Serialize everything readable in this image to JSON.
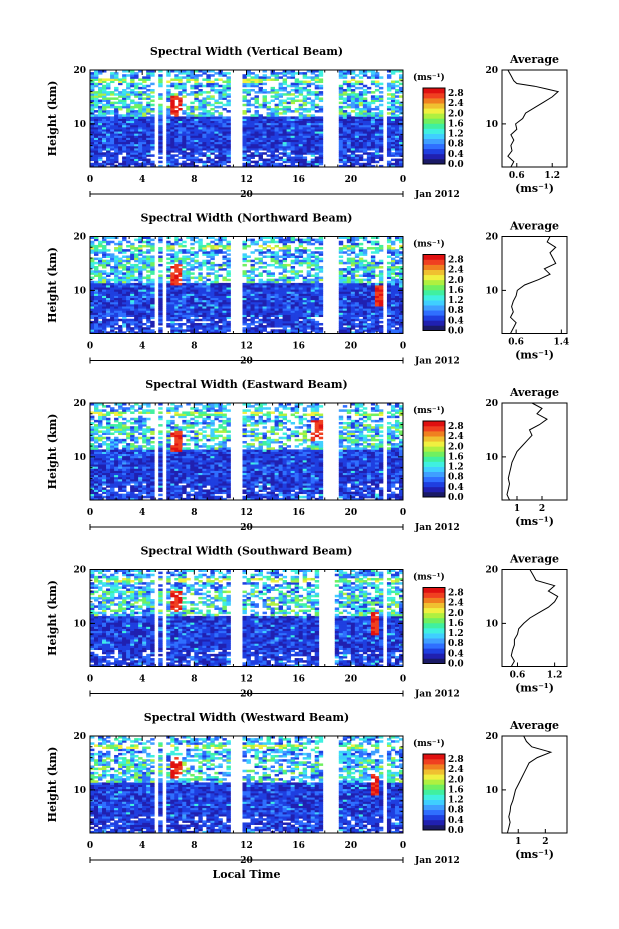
{
  "colors": {
    "cbar": [
      "#1a1a66",
      "#2020b0",
      "#1f3fe0",
      "#2f6fff",
      "#3f9fff",
      "#3fcfff",
      "#3ff0e0",
      "#40f0a0",
      "#70f060",
      "#b0f040",
      "#f0f040",
      "#f0c030",
      "#f08020",
      "#f04020",
      "#e01010"
    ]
  },
  "labels": {
    "ylabel": "Height (km)",
    "units": "(ms⁻¹)",
    "avg_title": "Average",
    "avg_xlabel": "(ms⁻¹)",
    "day": "20",
    "month": "Jan 2012",
    "xlabel": "Local Time"
  },
  "panels": [
    {
      "title": "Spectral Width (Vertical Beam)",
      "avg_ticks": [
        "0.6",
        "1.2"
      ],
      "avg_xlim": [
        0.35,
        1.45
      ],
      "gaps": [
        [
          4.9,
          5.3
        ],
        [
          5.6,
          5.9
        ],
        [
          10.8,
          11.6
        ],
        [
          18.0,
          19.2
        ],
        [
          22.6,
          22.9
        ]
      ],
      "features": [
        {
          "t": 6.6,
          "h": 13.5,
          "r": "red"
        }
      ],
      "avg_profile": [
        [
          0.5,
          2
        ],
        [
          0.55,
          3
        ],
        [
          0.45,
          4
        ],
        [
          0.52,
          5
        ],
        [
          0.5,
          6
        ],
        [
          0.55,
          7
        ],
        [
          0.5,
          8
        ],
        [
          0.6,
          9
        ],
        [
          0.58,
          10
        ],
        [
          0.7,
          11
        ],
        [
          0.75,
          12
        ],
        [
          0.9,
          13
        ],
        [
          1.05,
          14
        ],
        [
          1.2,
          15
        ],
        [
          1.3,
          16
        ],
        [
          1.1,
          16.5
        ],
        [
          0.9,
          17
        ],
        [
          0.6,
          17.5
        ],
        [
          0.55,
          18
        ],
        [
          0.5,
          19
        ],
        [
          0.45,
          20
        ]
      ]
    },
    {
      "title": "Spectral Width (Northward Beam)",
      "avg_ticks": [
        "0.6",
        "1.4"
      ],
      "avg_xlim": [
        0.35,
        1.5
      ],
      "gaps": [
        [
          4.9,
          5.3
        ],
        [
          5.6,
          5.9
        ],
        [
          10.8,
          11.6
        ],
        [
          18.0,
          19.0
        ],
        [
          22.6,
          22.9
        ]
      ],
      "features": [
        {
          "t": 6.6,
          "h": 13.0,
          "r": "red"
        },
        {
          "t": 22.2,
          "h": 9.0,
          "r": "red"
        }
      ],
      "avg_profile": [
        [
          0.5,
          2
        ],
        [
          0.55,
          3
        ],
        [
          0.6,
          4
        ],
        [
          0.5,
          5
        ],
        [
          0.55,
          6
        ],
        [
          0.52,
          7
        ],
        [
          0.55,
          8
        ],
        [
          0.6,
          9
        ],
        [
          0.62,
          10
        ],
        [
          0.75,
          11
        ],
        [
          1.0,
          12
        ],
        [
          1.2,
          13
        ],
        [
          1.1,
          14
        ],
        [
          1.3,
          15
        ],
        [
          1.25,
          16
        ],
        [
          1.2,
          17
        ],
        [
          1.3,
          18
        ],
        [
          1.15,
          19
        ],
        [
          1.2,
          20
        ]
      ]
    },
    {
      "title": "Spectral Width (Eastward Beam)",
      "avg_ticks": [
        "1",
        "2"
      ],
      "avg_xlim": [
        0.4,
        3.0
      ],
      "gaps": [
        [
          4.9,
          5.3
        ],
        [
          5.6,
          5.9
        ],
        [
          10.8,
          11.6
        ],
        [
          17.7,
          19.0
        ],
        [
          22.6,
          22.9
        ]
      ],
      "features": [
        {
          "t": 6.6,
          "h": 13.0,
          "r": "red"
        },
        {
          "t": 17.4,
          "h": 15.0,
          "r": "red"
        }
      ],
      "avg_profile": [
        [
          0.7,
          2
        ],
        [
          0.6,
          3
        ],
        [
          0.65,
          4
        ],
        [
          0.7,
          5
        ],
        [
          0.65,
          6
        ],
        [
          0.7,
          7
        ],
        [
          0.75,
          8
        ],
        [
          0.8,
          9
        ],
        [
          0.9,
          10
        ],
        [
          1.0,
          11
        ],
        [
          1.2,
          12
        ],
        [
          1.4,
          13
        ],
        [
          1.6,
          14
        ],
        [
          1.5,
          15
        ],
        [
          1.9,
          16
        ],
        [
          2.2,
          17
        ],
        [
          1.8,
          18
        ],
        [
          2.0,
          19
        ],
        [
          1.6,
          20
        ]
      ]
    },
    {
      "title": "Spectral Width (Southward Beam)",
      "avg_ticks": [
        "0.6",
        "1.2"
      ],
      "avg_xlim": [
        0.35,
        1.4
      ],
      "gaps": [
        [
          4.9,
          5.3
        ],
        [
          5.6,
          5.9
        ],
        [
          10.8,
          11.6
        ],
        [
          17.6,
          18.8
        ],
        [
          22.6,
          22.9
        ]
      ],
      "features": [
        {
          "t": 6.6,
          "h": 14.0,
          "r": "red"
        },
        {
          "t": 21.8,
          "h": 10.0,
          "r": "red"
        }
      ],
      "avg_profile": [
        [
          0.5,
          2
        ],
        [
          0.55,
          3
        ],
        [
          0.5,
          4
        ],
        [
          0.52,
          5
        ],
        [
          0.55,
          6
        ],
        [
          0.55,
          7
        ],
        [
          0.6,
          8
        ],
        [
          0.62,
          9
        ],
        [
          0.7,
          10
        ],
        [
          0.8,
          11
        ],
        [
          0.95,
          12
        ],
        [
          1.1,
          13
        ],
        [
          1.2,
          14
        ],
        [
          1.25,
          15
        ],
        [
          1.1,
          16
        ],
        [
          1.2,
          17
        ],
        [
          0.9,
          18
        ],
        [
          0.85,
          19
        ],
        [
          0.8,
          20
        ]
      ]
    },
    {
      "title": "Spectral Width (Westward Beam)",
      "avg_ticks": [
        "1",
        "2"
      ],
      "avg_xlim": [
        0.4,
        2.8
      ],
      "gaps": [
        [
          4.9,
          5.3
        ],
        [
          5.6,
          5.9
        ],
        [
          10.8,
          11.6
        ],
        [
          17.7,
          19.0
        ],
        [
          22.6,
          22.9
        ]
      ],
      "features": [
        {
          "t": 6.6,
          "h": 14.0,
          "r": "red"
        },
        {
          "t": 21.8,
          "h": 11.0,
          "r": "red"
        }
      ],
      "avg_profile": [
        [
          0.6,
          2
        ],
        [
          0.65,
          3
        ],
        [
          0.7,
          4
        ],
        [
          0.65,
          5
        ],
        [
          0.7,
          6
        ],
        [
          0.72,
          7
        ],
        [
          0.8,
          8
        ],
        [
          0.85,
          9
        ],
        [
          0.9,
          10
        ],
        [
          1.0,
          11
        ],
        [
          1.1,
          12
        ],
        [
          1.2,
          13
        ],
        [
          1.3,
          14
        ],
        [
          1.4,
          15
        ],
        [
          1.7,
          16
        ],
        [
          2.2,
          17
        ],
        [
          1.5,
          18
        ],
        [
          1.3,
          19
        ],
        [
          1.2,
          20
        ]
      ]
    }
  ],
  "chart_data": {
    "type": "heatmap",
    "x_ticks": [
      "0",
      "4",
      "8",
      "12",
      "16",
      "20",
      "0"
    ],
    "x_range_hours": [
      0,
      24
    ],
    "y_ticks": [
      "20",
      "10"
    ],
    "y_range_km": [
      2,
      20
    ],
    "colorbar_ticks": [
      "2.8",
      "2.4",
      "2.0",
      "1.6",
      "1.2",
      "0.8",
      "0.4",
      "0.0"
    ],
    "colorbar_range": [
      0.0,
      3.0
    ],
    "series": [
      {
        "name": "Vertical Beam"
      },
      {
        "name": "Northward Beam"
      },
      {
        "name": "Eastward Beam"
      },
      {
        "name": "Southward Beam"
      },
      {
        "name": "Westward Beam"
      }
    ]
  }
}
